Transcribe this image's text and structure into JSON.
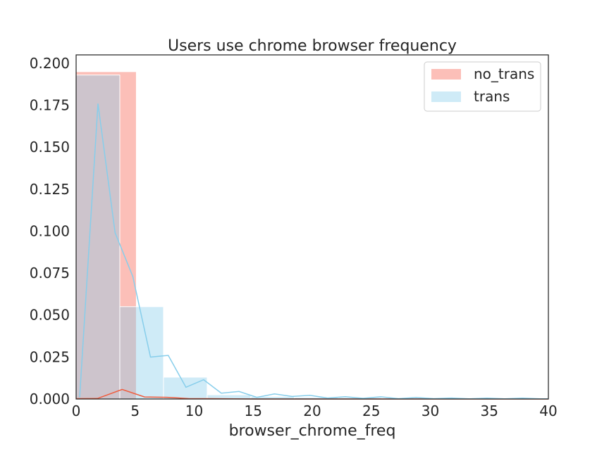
{
  "chart_data": {
    "type": "bar",
    "title": "Users use chrome browser frequency",
    "xlabel": "browser_chrome_freq",
    "ylabel": "",
    "xlim": [
      0,
      40
    ],
    "ylim": [
      0,
      0.205
    ],
    "xticks": [
      "0",
      "5",
      "10",
      "15",
      "20",
      "25",
      "30",
      "35",
      "40"
    ],
    "yticks": [
      "0.000",
      "0.025",
      "0.050",
      "0.075",
      "0.100",
      "0.125",
      "0.150",
      "0.175",
      "0.200"
    ],
    "grid": false,
    "legend_position": "top-right",
    "series": [
      {
        "name": "no_trans",
        "color": "#fa8072",
        "histogram": [
          {
            "x0": 0,
            "x1": 5.1,
            "value": 0.195
          }
        ],
        "kde": [
          [
            0,
            0.0002
          ],
          [
            1.8,
            0.0003
          ],
          [
            3.9,
            0.0057
          ],
          [
            5.8,
            0.0012
          ],
          [
            7.7,
            0.001
          ],
          [
            9.6,
            0.0002
          ],
          [
            11.5,
            0.0002
          ],
          [
            13.4,
            0.0001
          ],
          [
            15.3,
            0.0
          ],
          [
            20,
            0.0
          ],
          [
            25,
            0.0
          ],
          [
            30,
            0.0
          ],
          [
            35,
            0.0
          ],
          [
            40,
            0.0
          ]
        ]
      },
      {
        "name": "trans",
        "color": "#87ceeb",
        "histogram": [
          {
            "x0": 0,
            "x1": 3.7,
            "value": 0.193
          },
          {
            "x0": 3.7,
            "x1": 7.4,
            "value": 0.055
          },
          {
            "x0": 7.4,
            "x1": 11.1,
            "value": 0.013
          },
          {
            "x0": 11.1,
            "x1": 14.8,
            "value": 0.0025
          },
          {
            "x0": 14.8,
            "x1": 18.5,
            "value": 0.0015
          },
          {
            "x0": 18.5,
            "x1": 22.2,
            "value": 0.001
          },
          {
            "x0": 22.2,
            "x1": 25.9,
            "value": 0.0008
          },
          {
            "x0": 25.9,
            "x1": 29.6,
            "value": 0.0006
          },
          {
            "x0": 29.6,
            "x1": 33.3,
            "value": 0.0004
          },
          {
            "x0": 33.3,
            "x1": 37.0,
            "value": 0.0004
          },
          {
            "x0": 37.0,
            "x1": 40.0,
            "value": 0.0003
          }
        ],
        "kde": [
          [
            0.3,
            0.001
          ],
          [
            1.85,
            0.176
          ],
          [
            3.3,
            0.099
          ],
          [
            4.8,
            0.073
          ],
          [
            6.3,
            0.025
          ],
          [
            7.8,
            0.026
          ],
          [
            9.3,
            0.007
          ],
          [
            10.8,
            0.0115
          ],
          [
            12.3,
            0.0035
          ],
          [
            13.8,
            0.0045
          ],
          [
            15.3,
            0.001
          ],
          [
            16.8,
            0.003
          ],
          [
            18.3,
            0.0015
          ],
          [
            19.8,
            0.0022
          ],
          [
            21.3,
            0.0006
          ],
          [
            22.8,
            0.0014
          ],
          [
            24.3,
            0.0004
          ],
          [
            25.8,
            0.0013
          ],
          [
            27.3,
            0.0002
          ],
          [
            28.8,
            0.0009
          ],
          [
            30.3,
            0.0002
          ],
          [
            31.8,
            0.0006
          ],
          [
            33.3,
            0.0001
          ],
          [
            34.8,
            0.0005
          ],
          [
            36.3,
            0.0001
          ],
          [
            37.8,
            0.0005
          ],
          [
            39.3,
            0.0001
          ],
          [
            40,
            0.0001
          ]
        ]
      }
    ]
  }
}
